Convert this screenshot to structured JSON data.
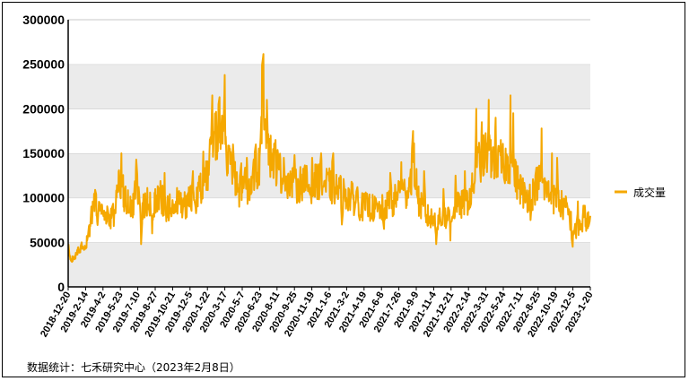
{
  "chart_data": {
    "type": "line",
    "series": [
      {
        "name": "成交量",
        "color": "#F5A800",
        "anchors": [
          [
            "2018-12-20",
            50000
          ],
          [
            "2018-12-25",
            32000
          ],
          [
            "2019-01-05",
            30000
          ],
          [
            "2019-01-20",
            42000
          ],
          [
            "2019-02-05",
            40000
          ],
          [
            "2019-02-14",
            55000
          ],
          [
            "2019-02-22",
            72000
          ],
          [
            "2019-03-05",
            100000
          ],
          [
            "2019-03-15",
            82000
          ],
          [
            "2019-03-30",
            80000
          ],
          [
            "2019-04-15",
            76000
          ],
          [
            "2019-04-30",
            80000
          ],
          [
            "2019-05-12",
            115000
          ],
          [
            "2019-05-20",
            120000
          ],
          [
            "2019-06-05",
            95000
          ],
          [
            "2019-06-25",
            90000
          ],
          [
            "2019-07-05",
            115000
          ],
          [
            "2019-07-20",
            85000
          ],
          [
            "2019-08-05",
            95000
          ],
          [
            "2019-08-25",
            90000
          ],
          [
            "2019-09-10",
            105000
          ],
          [
            "2019-09-30",
            88000
          ],
          [
            "2019-10-15",
            92000
          ],
          [
            "2019-10-30",
            95000
          ],
          [
            "2019-11-20",
            90000
          ],
          [
            "2019-12-10",
            100000
          ],
          [
            "2019-12-30",
            100000
          ],
          [
            "2020-01-10",
            115000
          ],
          [
            "2020-01-22",
            120000
          ],
          [
            "2020-02-05",
            145000
          ],
          [
            "2020-02-15",
            165000
          ],
          [
            "2020-02-25",
            175000
          ],
          [
            "2020-03-10",
            195000
          ],
          [
            "2020-03-20",
            150000
          ],
          [
            "2020-04-05",
            130000
          ],
          [
            "2020-04-25",
            115000
          ],
          [
            "2020-05-10",
            120000
          ],
          [
            "2020-05-25",
            110000
          ],
          [
            "2020-06-10",
            125000
          ],
          [
            "2020-06-25",
            135000
          ],
          [
            "2020-07-06",
            230000
          ],
          [
            "2020-07-15",
            175000
          ],
          [
            "2020-07-25",
            150000
          ],
          [
            "2020-08-10",
            140000
          ],
          [
            "2020-08-30",
            125000
          ],
          [
            "2020-09-20",
            120000
          ],
          [
            "2020-10-10",
            112000
          ],
          [
            "2020-11-01",
            120000
          ],
          [
            "2020-11-20",
            110000
          ],
          [
            "2020-12-10",
            120000
          ],
          [
            "2021-01-05",
            115000
          ],
          [
            "2021-02-01",
            110000
          ],
          [
            "2021-02-25",
            105000
          ],
          [
            "2021-03-20",
            100000
          ],
          [
            "2021-04-15",
            90000
          ],
          [
            "2021-05-10",
            90000
          ],
          [
            "2021-06-05",
            85000
          ],
          [
            "2021-06-25",
            90000
          ],
          [
            "2021-07-20",
            95000
          ],
          [
            "2021-08-05",
            110000
          ],
          [
            "2021-08-25",
            105000
          ],
          [
            "2021-09-05",
            120000
          ],
          [
            "2021-09-15",
            140000
          ],
          [
            "2021-09-30",
            95000
          ],
          [
            "2021-10-20",
            80000
          ],
          [
            "2021-11-10",
            75000
          ],
          [
            "2021-12-05",
            75000
          ],
          [
            "2021-12-25",
            80000
          ],
          [
            "2022-01-20",
            90000
          ],
          [
            "2022-02-14",
            95000
          ],
          [
            "2022-03-01",
            105000
          ],
          [
            "2022-03-20",
            140000
          ],
          [
            "2022-04-15",
            150000
          ],
          [
            "2022-05-05",
            145000
          ],
          [
            "2022-05-24",
            135000
          ],
          [
            "2022-06-20",
            140000
          ],
          [
            "2022-07-10",
            120000
          ],
          [
            "2022-08-05",
            100000
          ],
          [
            "2022-08-25",
            105000
          ],
          [
            "2022-09-10",
            120000
          ],
          [
            "2022-10-01",
            110000
          ],
          [
            "2022-10-19",
            100000
          ],
          [
            "2022-11-10",
            95000
          ],
          [
            "2022-12-05",
            85000
          ],
          [
            "2022-12-25",
            60000
          ],
          [
            "2023-01-10",
            70000
          ],
          [
            "2023-01-20",
            80000
          ],
          [
            "2023-02-08",
            70000
          ]
        ],
        "spikes": [
          [
            "2019-01-28",
            50000
          ],
          [
            "2019-03-08",
            109000
          ],
          [
            "2019-05-23",
            150000
          ],
          [
            "2019-07-05",
            143000
          ],
          [
            "2019-07-20",
            48000
          ],
          [
            "2019-08-20",
            60000
          ],
          [
            "2019-09-25",
            128000
          ],
          [
            "2019-12-15",
            130000
          ],
          [
            "2020-01-15",
            152000
          ],
          [
            "2020-02-10",
            215000
          ],
          [
            "2020-02-28",
            205000
          ],
          [
            "2020-03-17",
            238000
          ],
          [
            "2020-04-10",
            160000
          ],
          [
            "2020-04-28",
            90000
          ],
          [
            "2020-05-20",
            145000
          ],
          [
            "2020-06-15",
            160000
          ],
          [
            "2020-06-30",
            180000
          ],
          [
            "2020-07-06",
            258000
          ],
          [
            "2020-07-18",
            210000
          ],
          [
            "2020-08-11",
            165000
          ],
          [
            "2020-09-05",
            145000
          ],
          [
            "2020-10-05",
            148000
          ],
          [
            "2020-11-25",
            145000
          ],
          [
            "2020-12-20",
            150000
          ],
          [
            "2021-01-25",
            150000
          ],
          [
            "2021-02-20",
            70000
          ],
          [
            "2021-04-05",
            112000
          ],
          [
            "2021-06-20",
            65000
          ],
          [
            "2021-07-10",
            128000
          ],
          [
            "2021-08-10",
            140000
          ],
          [
            "2021-09-12",
            175000
          ],
          [
            "2021-10-15",
            130000
          ],
          [
            "2021-11-20",
            48000
          ],
          [
            "2021-12-10",
            110000
          ],
          [
            "2021-12-30",
            52000
          ],
          [
            "2022-01-15",
            125000
          ],
          [
            "2022-02-10",
            130000
          ],
          [
            "2022-03-15",
            200000
          ],
          [
            "2022-03-31",
            185000
          ],
          [
            "2022-04-20",
            210000
          ],
          [
            "2022-05-10",
            190000
          ],
          [
            "2022-05-25",
            165000
          ],
          [
            "2022-06-22",
            215000
          ],
          [
            "2022-06-30",
            195000
          ],
          [
            "2022-08-20",
            75000
          ],
          [
            "2022-09-20",
            178000
          ],
          [
            "2022-10-20",
            150000
          ],
          [
            "2022-11-05",
            145000
          ],
          [
            "2022-12-18",
            45000
          ],
          [
            "2023-01-03",
            96000
          ],
          [
            "2023-01-15",
            62000
          ]
        ]
      }
    ],
    "x_ticks": [
      "2018-12-20",
      "2019-2-14",
      "2019-4-2",
      "2019-5-23",
      "2019-7-10",
      "2019-8-27",
      "2019-10-21",
      "2019-12-5",
      "2020-1-22",
      "2020-3-17",
      "2020-5-7",
      "2020-6-23",
      "2020-8-11",
      "2020-9-25",
      "2020-11-19",
      "2021-1-6",
      "2021-3-2",
      "2021-4-19",
      "2021-6-8",
      "2021-7-26",
      "2021-9-9",
      "2021-11-4",
      "2021-12-21",
      "2022-2-14",
      "2022-3-31",
      "2022-5-24",
      "2022-7-11",
      "2022-8-25",
      "2022-10-19",
      "2022-12-5",
      "2023-1-20"
    ],
    "x_range": [
      "2018-12-20",
      "2023-02-08"
    ],
    "ylim": [
      0,
      300000
    ],
    "y_ticks": [
      0,
      50000,
      100000,
      150000,
      200000,
      250000,
      300000
    ],
    "grid": "horizontal bands (alternating white / light gray)",
    "legend_position": "right"
  },
  "source_note": "数据统计：七禾研究中心（2023年2月8日）"
}
